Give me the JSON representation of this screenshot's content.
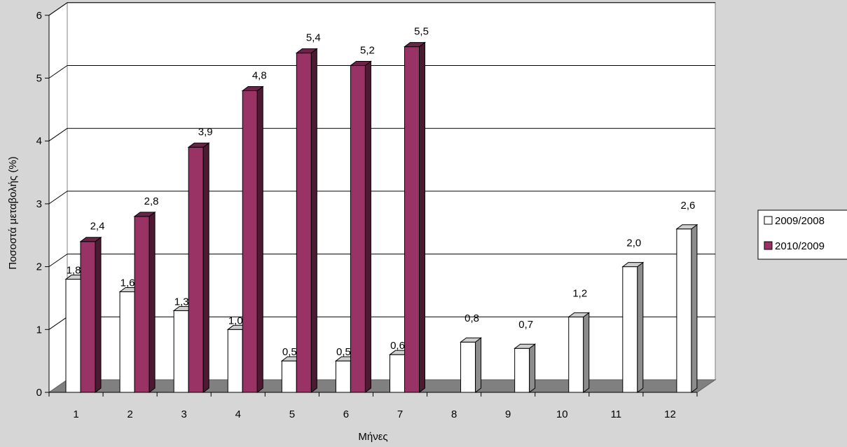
{
  "chart_data": {
    "type": "bar",
    "categories": [
      "1",
      "2",
      "3",
      "4",
      "5",
      "6",
      "7",
      "8",
      "9",
      "10",
      "11",
      "12"
    ],
    "series": [
      {
        "name": "2009/2008",
        "values": [
          1.8,
          1.6,
          1.3,
          1.0,
          0.5,
          0.5,
          0.6,
          0.8,
          0.7,
          1.2,
          2.0,
          2.6
        ],
        "labels": [
          "1,8",
          "1,6",
          "1,3",
          "1,0",
          "0,5",
          "0,5",
          "0,6",
          "0,8",
          "0,7",
          "1,2",
          "2,0",
          "2,6"
        ]
      },
      {
        "name": "2010/2009",
        "values": [
          2.4,
          2.8,
          3.9,
          4.8,
          5.4,
          5.2,
          5.5,
          null,
          null,
          null,
          null,
          null
        ],
        "labels": [
          "2,4",
          "2,8",
          "3,9",
          "4,8",
          "5,4",
          "5,2",
          "5,5",
          null,
          null,
          null,
          null,
          null
        ]
      }
    ],
    "yticks": [
      "0",
      "1",
      "2",
      "3",
      "4",
      "5",
      "6"
    ],
    "ylim": [
      0,
      6
    ],
    "xlabel": "Μήνες",
    "ylabel": "Ποσοστά μεταβολής (%)",
    "grid": true,
    "legend_position": "right",
    "colors": {
      "series1_face": "#ffffff",
      "series1_side": "#8c8c8c",
      "series1_top": "#cfcfcf",
      "series2_face": "#993366",
      "series2_side": "#4d1a33",
      "series2_top": "#6b2447",
      "floor": "#808080",
      "wall": "#ffffff",
      "background": "#d6d6d6"
    }
  }
}
